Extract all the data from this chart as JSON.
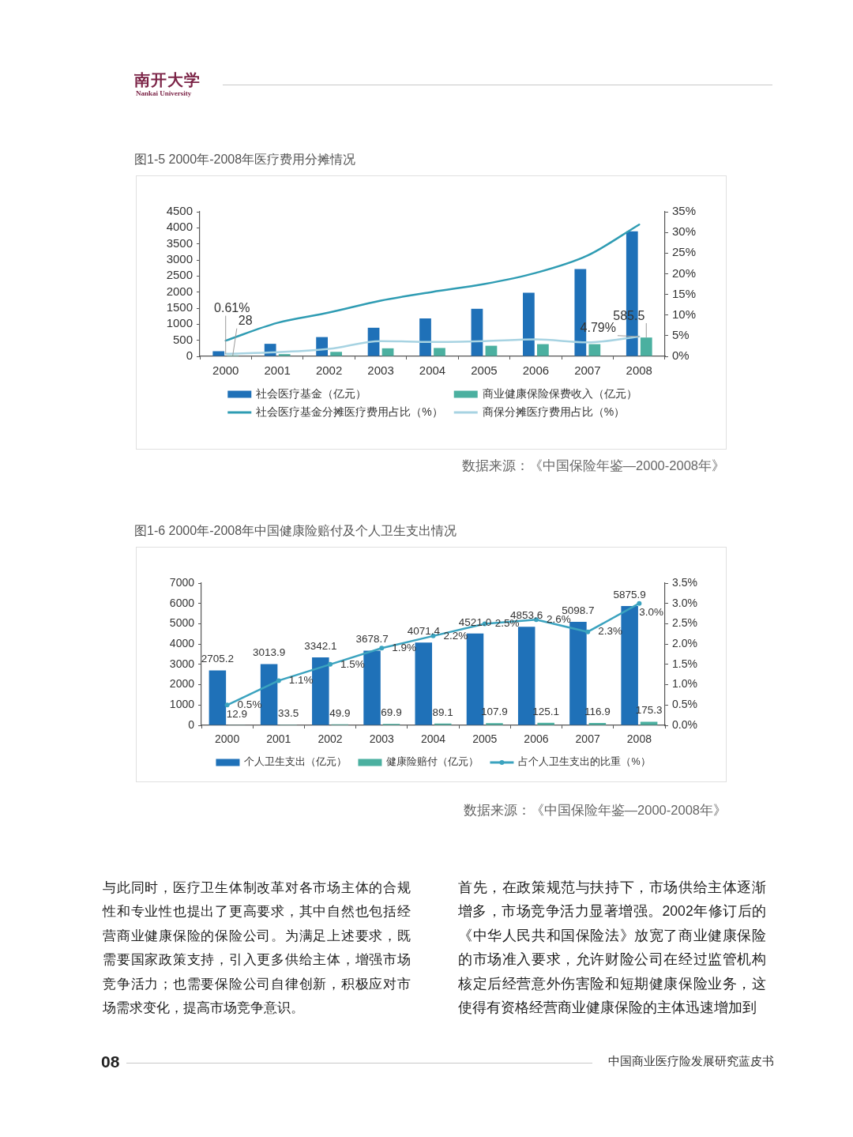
{
  "chart_data": [
    {
      "type": "other",
      "annotations": [
        "南开大学",
        "Nankai University"
      ]
    },
    {
      "type": "bar",
      "title": "图1-5 2000年-2008年医疗费用分摊情况",
      "categories": [
        "2000",
        "2001",
        "2002",
        "2003",
        "2004",
        "2005",
        "2006",
        "2007",
        "2008"
      ],
      "series": [
        {
          "name": "社会医疗基金（亿元）",
          "color": "#1f71b8",
          "values": [
            160,
            390,
            600,
            890,
            1180,
            1480,
            1980,
            2720,
            3890
          ]
        },
        {
          "name": "商业健康保险保费收入（亿元）",
          "color": "#4bb0a0",
          "values": [
            28,
            70,
            140,
            250,
            260,
            330,
            380,
            380,
            585.5
          ],
          "value_labels": [
            "28",
            null,
            null,
            null,
            null,
            null,
            null,
            null,
            "585.5"
          ]
        },
        {
          "name": "社会医疗基金分摊医疗费用占比（%）",
          "type": "line",
          "axis": "y2",
          "color": "#2f9cb3",
          "values": [
            3.8,
            8.1,
            10.6,
            13.5,
            15.6,
            17.5,
            20.2,
            24.4,
            31.9
          ]
        },
        {
          "name": "商保分摊医疗费用占比（%）",
          "type": "line",
          "axis": "y2",
          "color": "#a7d3e2",
          "values": [
            0.61,
            1.0,
            1.8,
            3.7,
            3.5,
            3.7,
            4.1,
            3.4,
            4.79
          ],
          "value_labels": [
            "0.61%",
            null,
            null,
            null,
            null,
            null,
            null,
            null,
            "4.79%"
          ]
        }
      ],
      "ylim": [
        0,
        4500
      ],
      "yticks": [
        0,
        500,
        1000,
        1500,
        2000,
        2500,
        3000,
        3500,
        4000,
        4500
      ],
      "y2lim": [
        0,
        35
      ],
      "y2ticks": [
        {
          "value": 0,
          "label": "0%"
        },
        {
          "value": 5,
          "label": "5%"
        },
        {
          "value": 10,
          "label": "10%"
        },
        {
          "value": 15,
          "label": "15%"
        },
        {
          "value": 20,
          "label": "20%"
        },
        {
          "value": 25,
          "label": "25%"
        },
        {
          "value": 30,
          "label": "30%"
        },
        {
          "value": 35,
          "label": "35%"
        }
      ],
      "legend": "bottom",
      "annotations": [
        "数据来源：《中国保险年鉴—2000-2008年》"
      ]
    },
    {
      "type": "bar",
      "title": "图1-6 2000年-2008年中国健康险赔付及个人卫生支出情况",
      "categories": [
        "2000",
        "2001",
        "2002",
        "2003",
        "2004",
        "2005",
        "2006",
        "2007",
        "2008"
      ],
      "series": [
        {
          "name": "个人卫生支出（亿元）",
          "color": "#1f71b8",
          "values": [
            2705.2,
            3013.9,
            3342.1,
            3678.7,
            4071.4,
            4521.0,
            4853.6,
            5098.7,
            5875.9
          ],
          "value_labels": [
            "2705.2",
            "3013.9",
            "3342.1",
            "3678.7",
            "4071.4",
            "4521.0",
            "4853.6",
            "5098.7",
            "5875.9"
          ]
        },
        {
          "name": "健康险赔付（亿元）",
          "color": "#4bb0a0",
          "values": [
            12.9,
            33.5,
            49.9,
            69.9,
            89.1,
            107.9,
            125.1,
            116.9,
            175.3
          ],
          "value_labels": [
            "12.9",
            "33.5",
            "49.9",
            "69.9",
            "89.1",
            "107.9",
            "125.1",
            "116.9",
            "175.3"
          ]
        },
        {
          "name": "占个人卫生支出的比重（%）",
          "type": "line",
          "axis": "y2",
          "color": "#3ba3bf",
          "values": [
            0.5,
            1.1,
            1.5,
            1.9,
            2.2,
            2.5,
            2.6,
            2.3,
            3.0
          ],
          "value_labels": [
            "0.5%",
            "1.1%",
            "1.5%",
            "1.9%",
            "2.2%",
            "2.5%",
            "2.6%",
            "2.3%",
            "3.0%"
          ]
        }
      ],
      "ylim": [
        0,
        7000
      ],
      "yticks": [
        0,
        1000,
        2000,
        3000,
        4000,
        5000,
        6000,
        7000
      ],
      "y2lim": [
        0,
        3.5
      ],
      "y2ticks": [
        {
          "value": 0,
          "label": "0.0%"
        },
        {
          "value": 0.5,
          "label": "0.5%"
        },
        {
          "value": 1,
          "label": "1.0%"
        },
        {
          "value": 1.5,
          "label": "1.5%"
        },
        {
          "value": 2,
          "label": "2.0%"
        },
        {
          "value": 2.5,
          "label": "2.5%"
        },
        {
          "value": 3,
          "label": "3.0%"
        },
        {
          "value": 3.5,
          "label": "3.5%"
        }
      ],
      "marker": "circle",
      "legend": "bottom",
      "annotations": [
        "数据来源：《中国保险年鉴—2000-2008年》"
      ]
    },
    {
      "type": "other",
      "annotations": [
        "与此同时，医疗卫生体制改革对各市场主体的合规性和专业性也提出了更高要求，其中自然也包括经营商业健康保险的保险公司。为满足上述要求，既需要国家政策支持，引入更多供给主体，增强市场竞争活力；也需要保险公司自律创新，积极应对市场需求变化，提高市场竞争意识。",
        "首先，在政策规范与扶持下，市场供给主体逐渐增多，市场竞争活力显著增强。2002年修订后的《中华人民共和国保险法》放宽了商业健康保险的市场准入要求，允许财险公司在经过监管机构核定后经营意外伤害险和短期健康保险业务，这使得有资格经营商业健康保险的主体迅速增加到",
        "08",
        "中国商业医疗险发展研究蓝皮书"
      ]
    }
  ]
}
